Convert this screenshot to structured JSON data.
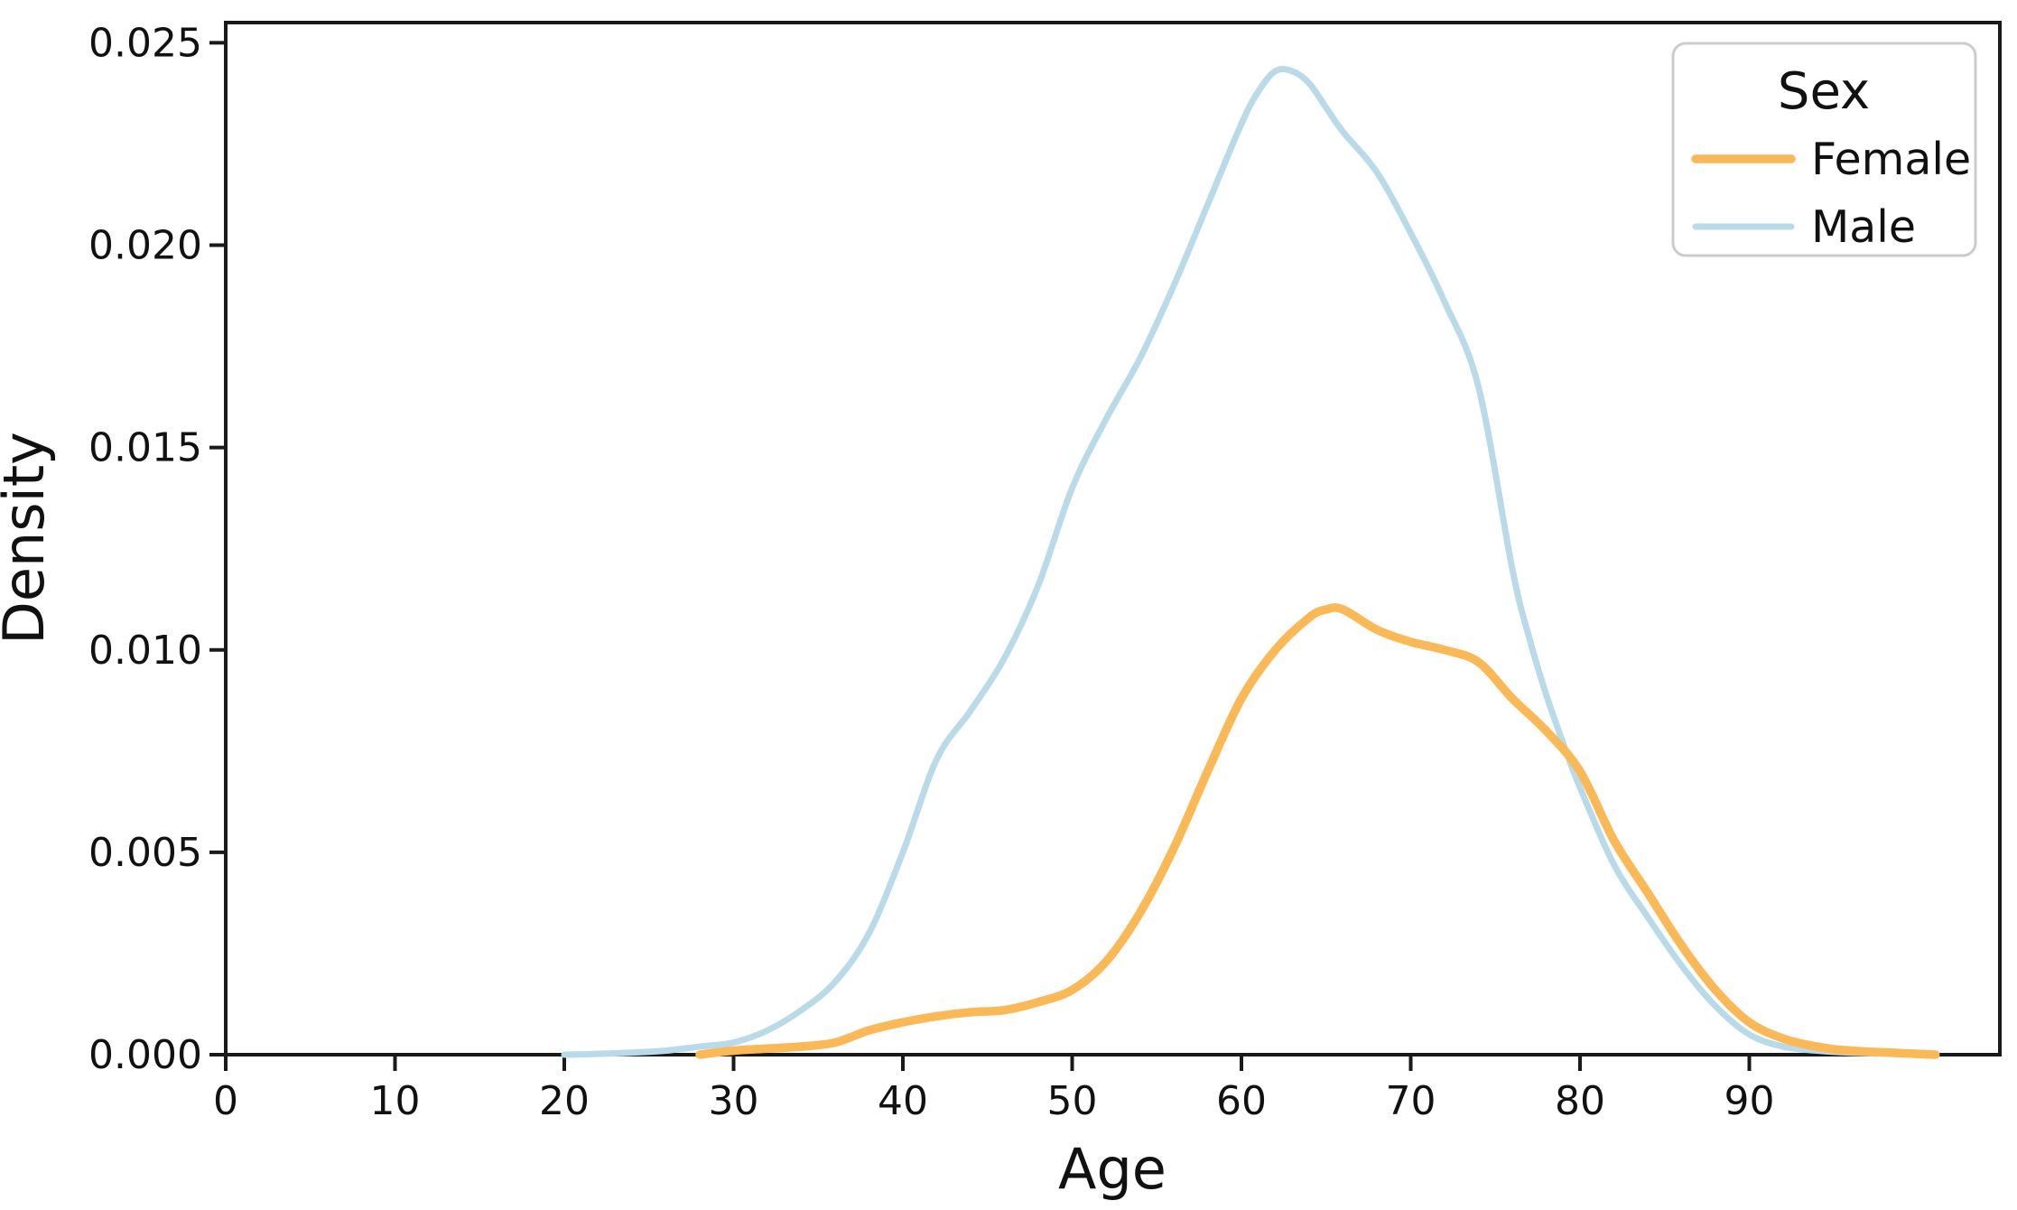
{
  "chart_data": {
    "type": "line",
    "subtype": "kde-density",
    "title": "",
    "xlabel": "Age",
    "ylabel": "Density",
    "xlim": [
      0,
      104.8
    ],
    "ylim": [
      0,
      0.0255
    ],
    "xticks": [
      0,
      10,
      20,
      30,
      40,
      50,
      60,
      70,
      80,
      90
    ],
    "yticks": [
      0,
      0.005,
      0.01,
      0.015,
      0.02,
      0.025
    ],
    "ytick_labels": [
      "0.000",
      "0.005",
      "0.010",
      "0.015",
      "0.020",
      "0.025"
    ],
    "grid": false,
    "background": "#ffffff",
    "axis_color": "#1a1a1a",
    "legend": {
      "title": "Sex",
      "position": "upper right",
      "border_color": "#cccccc"
    },
    "series": [
      {
        "name": "Female",
        "color": "#FBB857",
        "line_width": 9.5,
        "peak": {
          "age": 65,
          "density": 0.011
        },
        "points": [
          [
            28,
            0
          ],
          [
            30,
            0.0001
          ],
          [
            32,
            0.00015
          ],
          [
            34,
            0.0002
          ],
          [
            36,
            0.0003
          ],
          [
            38,
            0.0006
          ],
          [
            40,
            0.0008
          ],
          [
            42,
            0.00095
          ],
          [
            44,
            0.00105
          ],
          [
            46,
            0.0011
          ],
          [
            48,
            0.0013
          ],
          [
            50,
            0.0016
          ],
          [
            52,
            0.0023
          ],
          [
            54,
            0.0035
          ],
          [
            56,
            0.0051
          ],
          [
            58,
            0.007
          ],
          [
            60,
            0.0088
          ],
          [
            62,
            0.01
          ],
          [
            64,
            0.0108
          ],
          [
            65,
            0.011
          ],
          [
            66,
            0.011
          ],
          [
            68,
            0.0105
          ],
          [
            70,
            0.0102
          ],
          [
            72,
            0.01
          ],
          [
            74,
            0.0097
          ],
          [
            76,
            0.0088
          ],
          [
            78,
            0.008
          ],
          [
            80,
            0.007
          ],
          [
            82,
            0.0053
          ],
          [
            84,
            0.004
          ],
          [
            86,
            0.0027
          ],
          [
            88,
            0.0016
          ],
          [
            90,
            0.0008
          ],
          [
            92,
            0.0004
          ],
          [
            94,
            0.0002
          ],
          [
            96,
            0.0001
          ],
          [
            101,
            0
          ]
        ]
      },
      {
        "name": "Male",
        "color": "#B8DAE9",
        "line_width": 7,
        "peak": {
          "age": 62,
          "density": 0.0243
        },
        "points": [
          [
            20,
            0
          ],
          [
            22,
            2e-05
          ],
          [
            24,
            5e-05
          ],
          [
            26,
            0.0001
          ],
          [
            28,
            0.0002
          ],
          [
            30,
            0.0003
          ],
          [
            32,
            0.0006
          ],
          [
            34,
            0.0011
          ],
          [
            36,
            0.0018
          ],
          [
            38,
            0.003
          ],
          [
            40,
            0.005
          ],
          [
            42,
            0.0073
          ],
          [
            44,
            0.0085
          ],
          [
            46,
            0.0098
          ],
          [
            48,
            0.0116
          ],
          [
            50,
            0.014
          ],
          [
            52,
            0.0157
          ],
          [
            54,
            0.0172
          ],
          [
            56,
            0.019
          ],
          [
            58,
            0.021
          ],
          [
            60,
            0.023
          ],
          [
            61,
            0.0238
          ],
          [
            62,
            0.0243
          ],
          [
            63,
            0.0243
          ],
          [
            64,
            0.024
          ],
          [
            65,
            0.0234
          ],
          [
            66,
            0.0228
          ],
          [
            68,
            0.0218
          ],
          [
            70,
            0.0203
          ],
          [
            72,
            0.0186
          ],
          [
            74,
            0.0165
          ],
          [
            76,
            0.012
          ],
          [
            77,
            0.0103
          ],
          [
            78,
            0.0089
          ],
          [
            79,
            0.0077
          ],
          [
            80,
            0.0066
          ],
          [
            82,
            0.0047
          ],
          [
            84,
            0.0034
          ],
          [
            86,
            0.0022
          ],
          [
            88,
            0.0012
          ],
          [
            90,
            0.0005
          ],
          [
            92,
            0.0002
          ],
          [
            94,
            0.0001
          ],
          [
            96,
            5e-05
          ],
          [
            100,
            0
          ]
        ]
      }
    ]
  }
}
